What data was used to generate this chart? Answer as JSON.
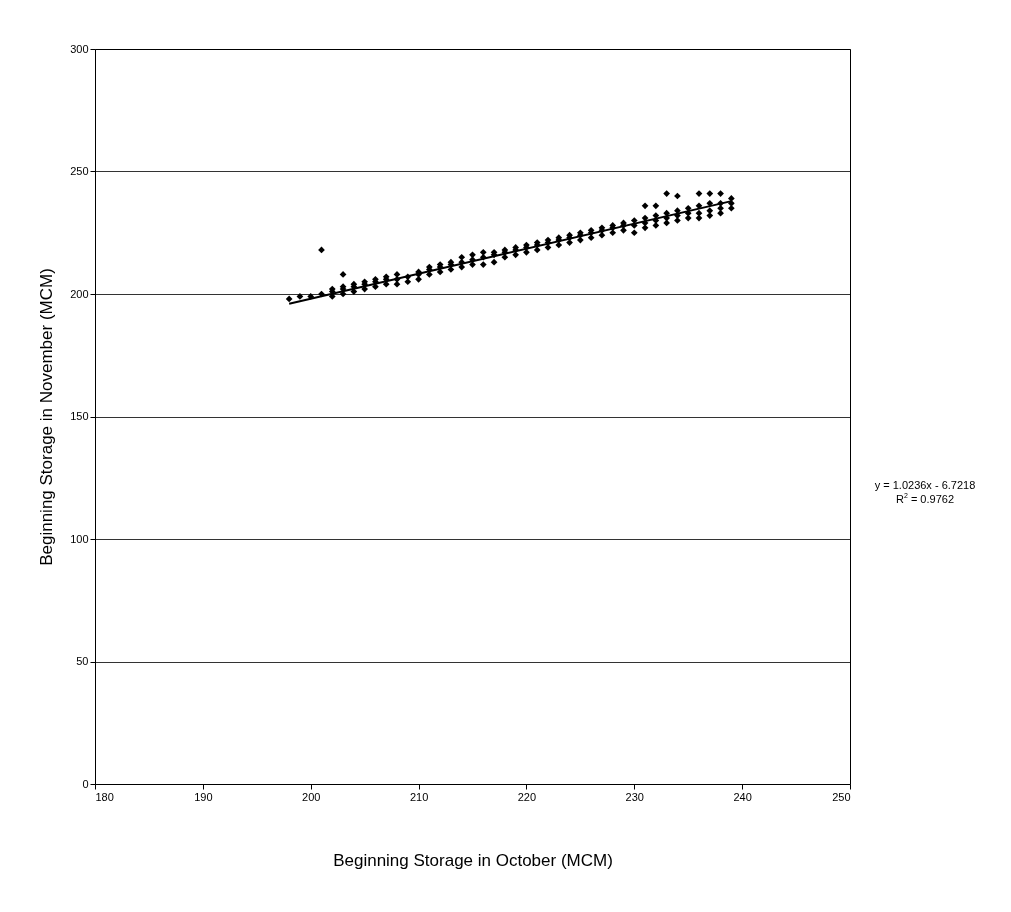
{
  "chart_data": {
    "type": "scatter",
    "xlabel": "Beginning Storage in October (MCM)",
    "ylabel": "Beginning Storage in November (MCM)",
    "xlim": [
      180,
      250
    ],
    "xticks": [
      180,
      190,
      200,
      210,
      220,
      230,
      240,
      250
    ],
    "ylim": [
      0,
      300
    ],
    "yticks": [
      0,
      50,
      100,
      150,
      200,
      250,
      300
    ],
    "grid": "y",
    "annotations": [
      "y = 1.0236x - 6.7218",
      "R$^{2}$ = 0.9762"
    ],
    "series": [
      {
        "marker": "diamond",
        "color": "#000000",
        "x": [
          198,
          199,
          200,
          201,
          201,
          202,
          202,
          202,
          203,
          203,
          203,
          203,
          204,
          204,
          204,
          205,
          205,
          205,
          206,
          206,
          206,
          207,
          207,
          207,
          208,
          208,
          208,
          209,
          209,
          210,
          210,
          210,
          211,
          211,
          211,
          212,
          212,
          212,
          213,
          213,
          213,
          214,
          214,
          214,
          215,
          215,
          215,
          216,
          216,
          216,
          217,
          217,
          217,
          218,
          218,
          218,
          219,
          219,
          219,
          220,
          220,
          220,
          221,
          221,
          221,
          222,
          222,
          222,
          223,
          223,
          223,
          224,
          224,
          224,
          225,
          225,
          225,
          226,
          226,
          226,
          227,
          227,
          227,
          228,
          228,
          228,
          229,
          229,
          229,
          230,
          230,
          230,
          231,
          231,
          231,
          231,
          232,
          232,
          232,
          232,
          233,
          233,
          233,
          233,
          234,
          234,
          234,
          234,
          235,
          235,
          235,
          236,
          236,
          236,
          236,
          237,
          237,
          237,
          237,
          238,
          238,
          238,
          238,
          239,
          239,
          239
        ],
        "values": [
          198,
          199,
          199,
          200,
          218,
          199,
          201,
          202,
          200,
          202,
          203,
          208,
          201,
          203,
          204,
          202,
          204,
          205,
          203,
          205,
          206,
          204,
          206,
          207,
          204,
          206,
          208,
          205,
          207,
          206,
          208,
          209,
          208,
          210,
          211,
          209,
          211,
          212,
          210,
          212,
          213,
          211,
          213,
          215,
          212,
          214,
          216,
          212,
          215,
          217,
          213,
          216,
          217,
          215,
          217,
          218,
          216,
          218,
          219,
          217,
          219,
          220,
          218,
          220,
          221,
          219,
          221,
          222,
          220,
          222,
          223,
          221,
          223,
          224,
          222,
          224,
          225,
          223,
          225,
          226,
          224,
          226,
          227,
          225,
          227,
          228,
          226,
          228,
          229,
          225,
          228,
          230,
          227,
          229,
          231,
          236,
          228,
          230,
          232,
          236,
          229,
          231,
          233,
          241,
          230,
          232,
          234,
          240,
          231,
          233,
          235,
          231,
          233,
          236,
          241,
          232,
          234,
          237,
          241,
          233,
          235,
          237,
          241,
          235,
          237,
          239
        ]
      },
      {
        "type": "line",
        "color": "#000000",
        "x": [
          198,
          239
        ],
        "values": [
          196,
          237.9
        ]
      }
    ]
  }
}
